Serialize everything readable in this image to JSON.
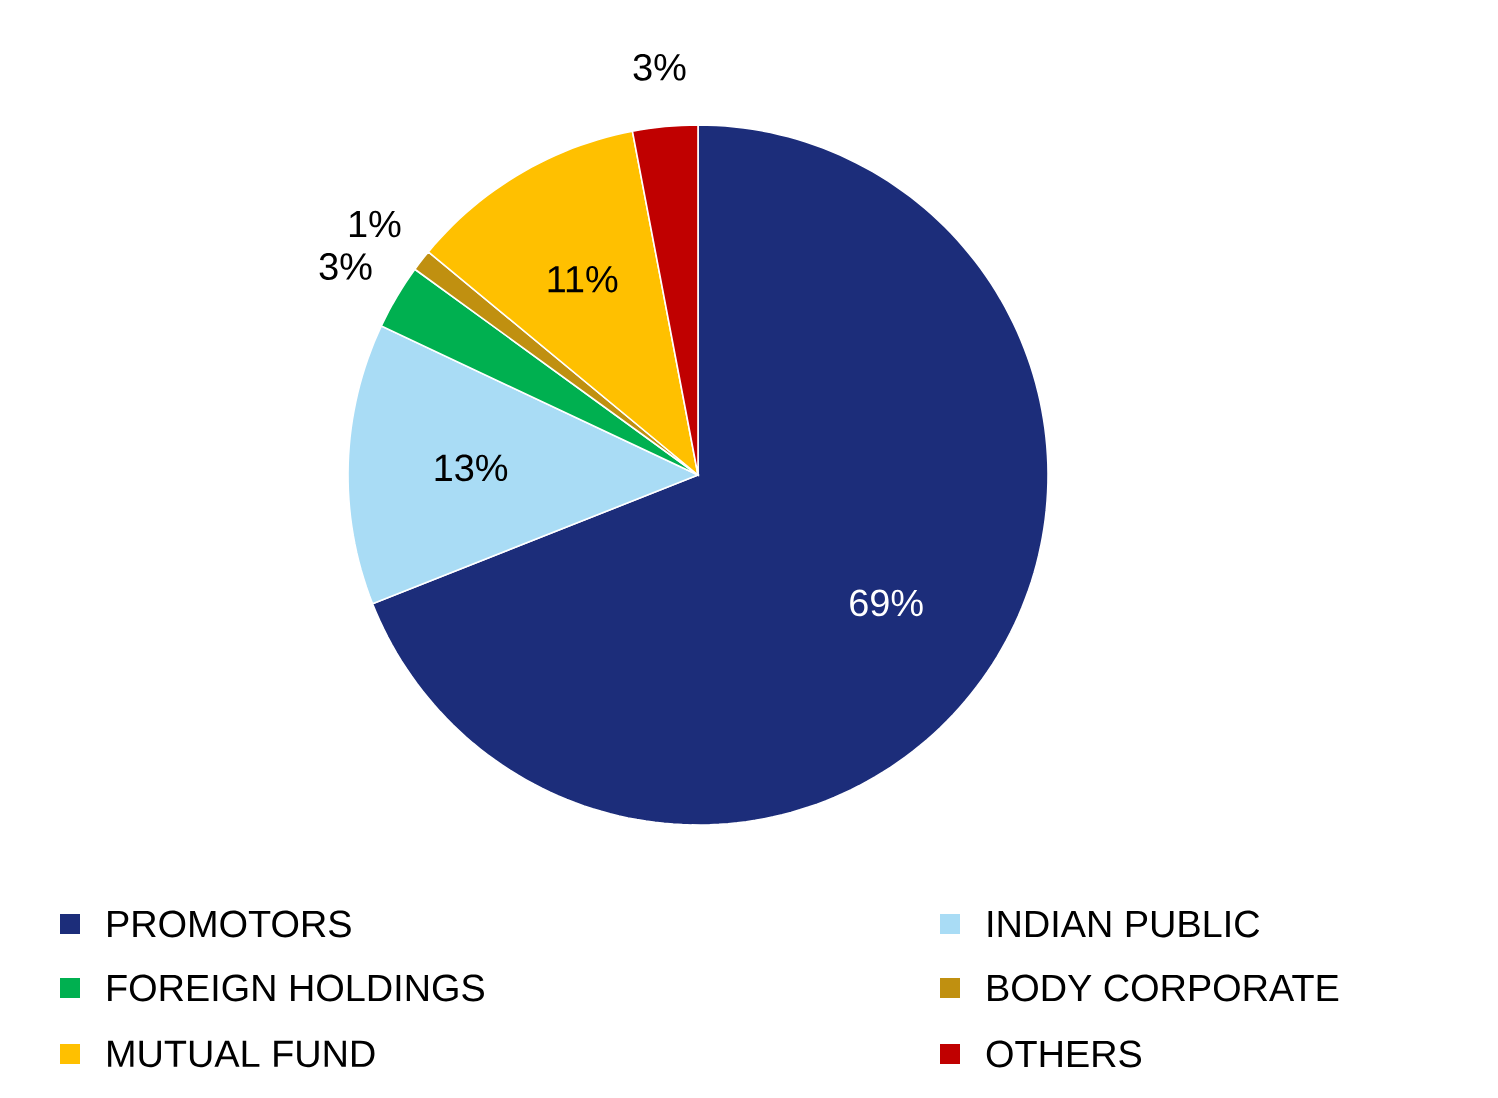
{
  "chart_data": {
    "type": "pie",
    "categories": [
      "PROMOTORS",
      "INDIAN PUBLIC",
      "FOREIGN HOLDINGS",
      "BODY CORPORATE",
      "MUTUAL FUND",
      "OTHERS"
    ],
    "values": [
      69,
      13,
      3,
      1,
      11,
      3
    ],
    "value_labels": [
      "69%",
      "13%",
      "3%",
      "1%",
      "11%",
      "3%"
    ],
    "colors": [
      "#1c2d7a",
      "#a9dcf5",
      "#00b050",
      "#c09010",
      "#ffc000",
      "#c00000"
    ],
    "legend": "bottom"
  }
}
